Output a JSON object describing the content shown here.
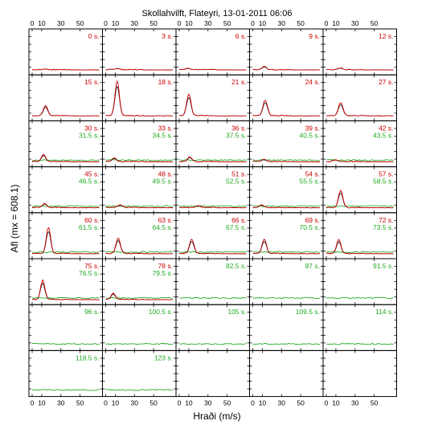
{
  "chart_data": {
    "type": "line",
    "title": "Skollahvilft, Flateyri, 13-01-2011 06:06",
    "xlabel": "Hraði (m/s)",
    "ylabel": "Afl (mx = 608.1)",
    "xlim": [
      0,
      70
    ],
    "x_ticks": [
      0,
      10,
      30,
      50
    ],
    "grid_rows": 8,
    "grid_cols": 5,
    "series_colors": {
      "red": "#cc0000",
      "green": "#22aa22",
      "black": "#000000"
    },
    "panels": [
      {
        "red": "0 s.",
        "green": "",
        "peak_x": 14,
        "peak_y": 0.02
      },
      {
        "red": "3 s.",
        "green": "",
        "peak_x": 12,
        "peak_y": 0.04
      },
      {
        "red": "6 s.",
        "green": "",
        "peak_x": 9,
        "peak_y": 0.05
      },
      {
        "red": "9 s.",
        "green": "",
        "peak_x": 12,
        "peak_y": 0.1
      },
      {
        "red": "12 s.",
        "green": "",
        "peak_x": 15,
        "peak_y": 0.05
      },
      {
        "red": "15 s.",
        "green": "",
        "peak_x": 14,
        "peak_y": 0.3
      },
      {
        "red": "18 s.",
        "green": "",
        "peak_x": 12,
        "peak_y": 1.0
      },
      {
        "red": "21 s.",
        "green": "",
        "peak_x": 10,
        "peak_y": 0.62
      },
      {
        "red": "24 s.",
        "green": "",
        "peak_x": 13,
        "peak_y": 0.45
      },
      {
        "red": "27 s.",
        "green": "",
        "peak_x": 15,
        "peak_y": 0.38
      },
      {
        "red": "30 s.",
        "green": "31.5 s.",
        "peak_x": 12,
        "peak_y": 0.2
      },
      {
        "red": "33 s.",
        "green": "34.5 s.",
        "peak_x": 9,
        "peak_y": 0.1
      },
      {
        "red": "36 s.",
        "green": "37.5 s.",
        "peak_x": 11,
        "peak_y": 0.14
      },
      {
        "red": "39 s.",
        "green": "40.5 s.",
        "peak_x": 12,
        "peak_y": 0.06
      },
      {
        "red": "42 s.",
        "green": "43.5 s.",
        "peak_x": 9,
        "peak_y": 0.05
      },
      {
        "red": "45 s.",
        "green": "46.5 s.",
        "peak_x": 13,
        "peak_y": 0.12
      },
      {
        "red": "48 s.",
        "green": "49.5 s.",
        "peak_x": 15,
        "peak_y": 0.08
      },
      {
        "red": "51 s.",
        "green": "52.5 s.",
        "peak_x": 20,
        "peak_y": 0.05
      },
      {
        "red": "54 s.",
        "green": "55.5 s.",
        "peak_x": 9,
        "peak_y": 0.07
      },
      {
        "red": "57 s.",
        "green": "58.5 s.",
        "peak_x": 15,
        "peak_y": 0.5
      },
      {
        "red": "60 s.",
        "green": "61.5 s.",
        "peak_x": 17,
        "peak_y": 0.75
      },
      {
        "red": "63 s.",
        "green": "64.5 s.",
        "peak_x": 13,
        "peak_y": 0.45
      },
      {
        "red": "66 s.",
        "green": "67.5 s.",
        "peak_x": 13,
        "peak_y": 0.42
      },
      {
        "red": "69 s.",
        "green": "70.5 s.",
        "peak_x": 12,
        "peak_y": 0.42
      },
      {
        "red": "72 s.",
        "green": "73.5 s.",
        "peak_x": 13,
        "peak_y": 0.4
      },
      {
        "red": "75 s.",
        "green": "76.5 s.",
        "peak_x": 11,
        "peak_y": 0.55
      },
      {
        "red": "78 s.",
        "green": "79.5 s.",
        "peak_x": 8,
        "peak_y": 0.18
      },
      {
        "red": "",
        "green": "82.5 s.",
        "peak_x": 0,
        "peak_y": 0
      },
      {
        "red": "",
        "green": "87 s.",
        "peak_x": 0,
        "peak_y": 0
      },
      {
        "red": "",
        "green": "91.5 s.",
        "peak_x": 0,
        "peak_y": 0
      },
      {
        "red": "",
        "green": "96 s.",
        "peak_x": 0,
        "peak_y": 0
      },
      {
        "red": "",
        "green": "100.5 s.",
        "peak_x": 0,
        "peak_y": 0
      },
      {
        "red": "",
        "green": "105 s.",
        "peak_x": 0,
        "peak_y": 0
      },
      {
        "red": "",
        "green": "109.5 s.",
        "peak_x": 0,
        "peak_y": 0
      },
      {
        "red": "",
        "green": "114 s.",
        "peak_x": 0,
        "peak_y": 0
      },
      {
        "red": "",
        "green": "118.5 s.",
        "peak_x": 0,
        "peak_y": 0
      },
      {
        "red": "",
        "green": "123 s.",
        "peak_x": 0,
        "peak_y": 0
      },
      {
        "red": "",
        "green": "",
        "peak_x": 0,
        "peak_y": 0
      },
      {
        "red": "",
        "green": "",
        "peak_x": 0,
        "peak_y": 0
      },
      {
        "red": "",
        "green": "",
        "peak_x": 0,
        "peak_y": 0
      }
    ]
  }
}
